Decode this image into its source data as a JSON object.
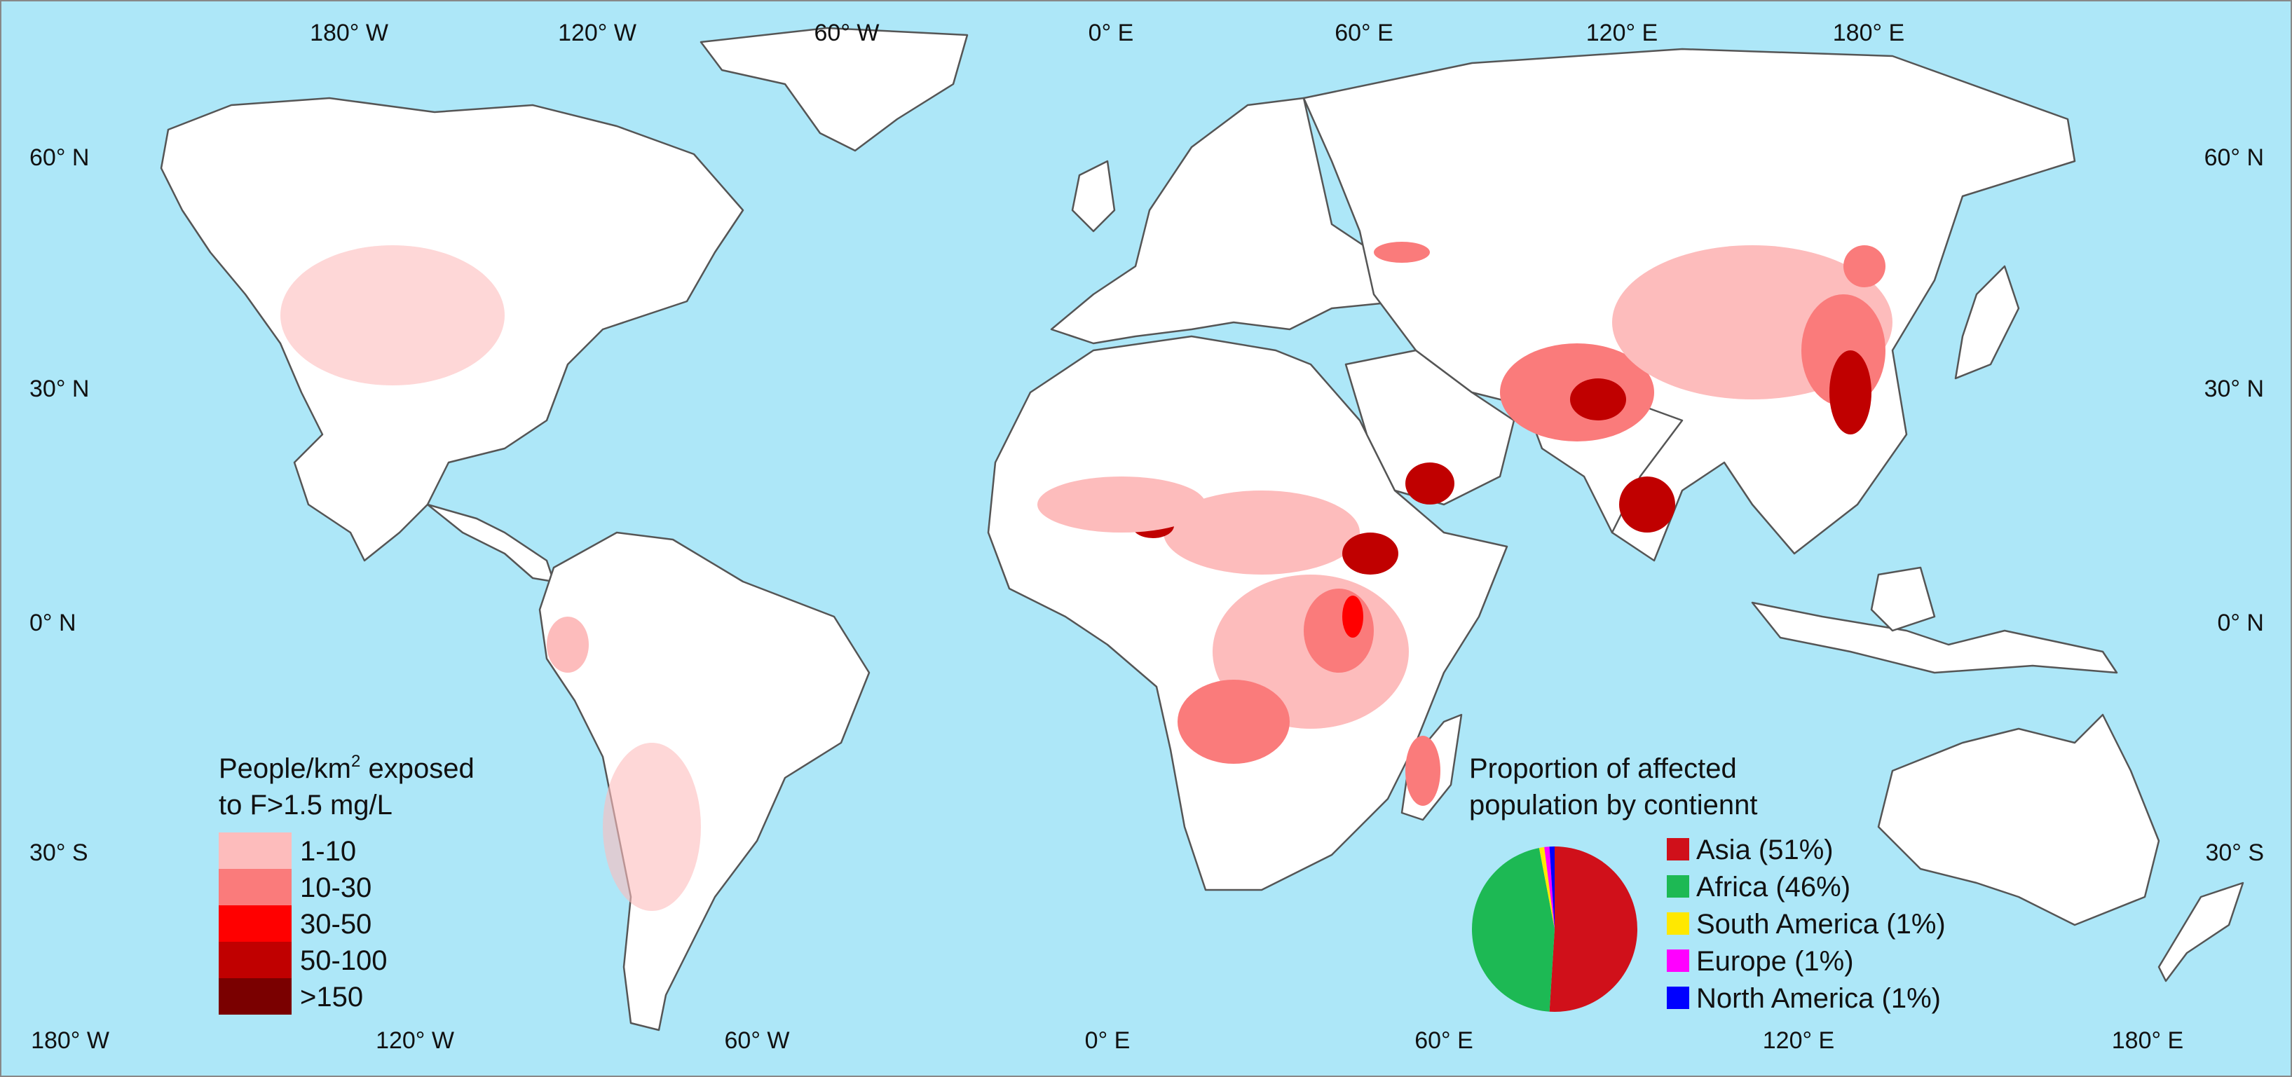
{
  "colors": {
    "ocean": "#ade7f8",
    "land": "#ffffff",
    "border": "#555555",
    "c1": "#fdbcbc",
    "c2": "#fa7b7b",
    "c3": "#ff0000",
    "c4": "#c00000",
    "c5": "#7a0000"
  },
  "grid": {
    "top_labels": [
      "180° W",
      "120° W",
      "60° W",
      "0° E",
      "60° E",
      "120° E",
      "180° E"
    ],
    "bottom_labels": [
      "180° W",
      "120° W",
      "60° W",
      "0° E",
      "60° E",
      "120° E",
      "180° E"
    ],
    "lat_labels": [
      "60° N",
      "30° N",
      "0° N",
      "30° S"
    ]
  },
  "legend_density": {
    "title_line1": "People/km",
    "title_sup": "2",
    "title_line1_rest": " exposed",
    "title_line2": "to F>1.5 mg/L",
    "classes": [
      {
        "label": "1-10",
        "color": "#fdbcbc"
      },
      {
        "label": "10-30",
        "color": "#fa7b7b"
      },
      {
        "label": "30-50",
        "color": "#ff0000"
      },
      {
        "label": "50-100",
        "color": "#c00000"
      },
      {
        "label": ">150",
        "color": "#7a0000"
      }
    ]
  },
  "pie": {
    "title_line1": "Proportion of affected",
    "title_line2": "population by contiennt",
    "slices": [
      {
        "label": "Asia (51%)",
        "value": 51,
        "color": "#d0101a"
      },
      {
        "label": "Africa (46%)",
        "value": 46,
        "color": "#1db954"
      },
      {
        "label": "South America (1%)",
        "value": 1,
        "color": "#ffe800"
      },
      {
        "label": "Europe (1%)",
        "value": 1,
        "color": "#ff00ff"
      },
      {
        "label": "North America (1%)",
        "value": 1,
        "color": "#0000ff"
      }
    ]
  }
}
